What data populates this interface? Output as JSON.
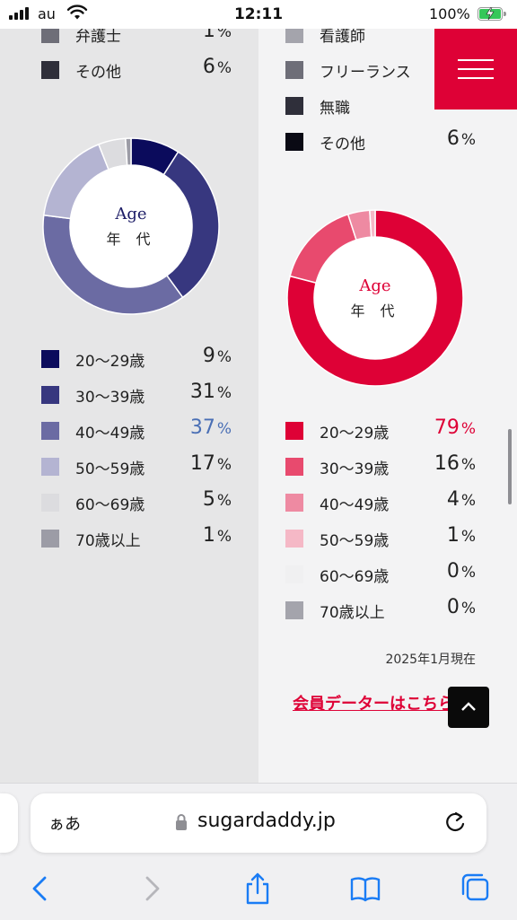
{
  "status_bar": {
    "time": "12:11",
    "carrier": "au",
    "battery_percent": "100%"
  },
  "left_column": {
    "occupation_partial": [
      {
        "label": "弁護士",
        "value": "1",
        "unit": "%",
        "color": "#6e6e78"
      },
      {
        "label": "その他",
        "value": "6",
        "unit": "%",
        "color": "#2f2f3a"
      }
    ],
    "age_chart": {
      "label_en": "Age",
      "label_jp": "年 代",
      "accent": "#1c1c66",
      "items": [
        {
          "label": "20〜29歳",
          "value": 9,
          "display": "9",
          "unit": "%",
          "color": "#0b0b5c",
          "highlight": false
        },
        {
          "label": "30〜39歳",
          "value": 31,
          "display": "31",
          "unit": "%",
          "color": "#37377f",
          "highlight": false
        },
        {
          "label": "40〜49歳",
          "value": 37,
          "display": "37",
          "unit": "%",
          "color": "#6b6ba3",
          "highlight": true
        },
        {
          "label": "50〜59歳",
          "value": 17,
          "display": "17",
          "unit": "%",
          "color": "#b4b4d2",
          "highlight": false
        },
        {
          "label": "60〜69歳",
          "value": 5,
          "display": "5",
          "unit": "%",
          "color": "#dcdcdf",
          "highlight": false
        },
        {
          "label": "70歳以上",
          "value": 1,
          "display": "1",
          "unit": "%",
          "color": "#9c9ca6",
          "highlight": false
        }
      ],
      "highlight_color": "#4a6fb5"
    }
  },
  "right_column": {
    "occupation_partial": [
      {
        "label": "看護師",
        "value": "",
        "unit": "",
        "color": "#a4a4ac"
      },
      {
        "label": "フリーランス",
        "value": "",
        "unit": "",
        "color": "#6e6e78"
      },
      {
        "label": "無職",
        "value": "",
        "unit": "",
        "color": "#2f2f3a"
      },
      {
        "label": "その他",
        "value": "6",
        "unit": "%",
        "color": "#0a0a14"
      }
    ],
    "age_chart": {
      "label_en": "Age",
      "label_jp": "年 代",
      "accent": "#de0136",
      "items": [
        {
          "label": "20〜29歳",
          "value": 79,
          "display": "79",
          "unit": "%",
          "color": "#de0136",
          "highlight": true
        },
        {
          "label": "30〜39歳",
          "value": 16,
          "display": "16",
          "unit": "%",
          "color": "#e84a6e",
          "highlight": false
        },
        {
          "label": "40〜49歳",
          "value": 4,
          "display": "4",
          "unit": "%",
          "color": "#ee8aa2",
          "highlight": false
        },
        {
          "label": "50〜59歳",
          "value": 1,
          "display": "1",
          "unit": "%",
          "color": "#f5b8c6",
          "highlight": false
        },
        {
          "label": "60〜69歳",
          "value": 0,
          "display": "0",
          "unit": "%",
          "color": "#f0f0f1",
          "highlight": false
        },
        {
          "label": "70歳以上",
          "value": 0,
          "display": "0",
          "unit": "%",
          "color": "#a4a4ac",
          "highlight": false
        }
      ],
      "highlight_color": "#de0136"
    },
    "date_note": "2025年1月現在",
    "member_link": "会員データーはこちら"
  },
  "safari": {
    "aa_label": "ぁあ",
    "url": "sugardaddy.jp"
  },
  "colors": {
    "brand_red": "#de0136",
    "navy": "#1c1c66"
  }
}
